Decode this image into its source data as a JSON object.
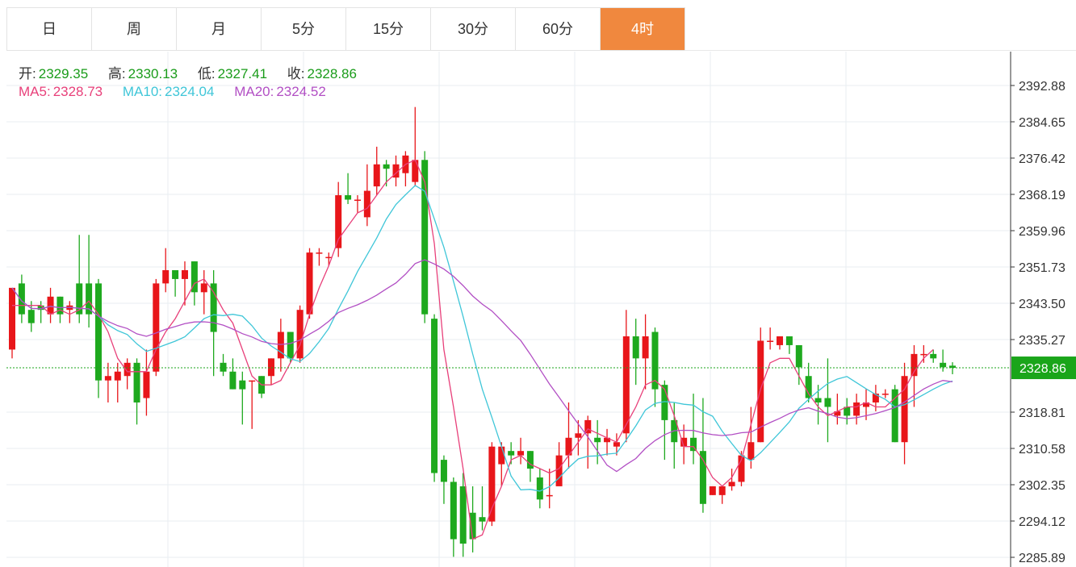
{
  "tabs": [
    {
      "label": "日",
      "active": false
    },
    {
      "label": "周",
      "active": false
    },
    {
      "label": "月",
      "active": false
    },
    {
      "label": "5分",
      "active": false
    },
    {
      "label": "15分",
      "active": false
    },
    {
      "label": "30分",
      "active": false
    },
    {
      "label": "60分",
      "active": false
    },
    {
      "label": "4时",
      "active": true
    }
  ],
  "ohlc": {
    "open_label": "开:",
    "open": "2329.35",
    "high_label": "高:",
    "high": "2330.13",
    "low_label": "低:",
    "low": "2327.41",
    "close_label": "收:",
    "close": "2328.86"
  },
  "ma": {
    "ma5_label": "MA5:",
    "ma5": "2328.73",
    "ma10_label": "MA10:",
    "ma10": "2324.04",
    "ma20_label": "MA20:",
    "ma20": "2324.52"
  },
  "colors": {
    "up": "#e8161a",
    "down": "#1ea91e",
    "ma5": "#e8407a",
    "ma10": "#3fc6d8",
    "ma20": "#b24fc4",
    "tab_active": "#f0883e",
    "current_price_box": "#1aa51a"
  },
  "chart_data": {
    "type": "candlestick",
    "y_ticks": [
      "2392.88",
      "2384.65",
      "2376.42",
      "2368.19",
      "2359.96",
      "2351.73",
      "2343.50",
      "2335.27",
      "2318.81",
      "2310.58",
      "2302.35",
      "2294.12",
      "2285.89"
    ],
    "ylim": [
      2285.89,
      2392.88
    ],
    "current_price": "2328.86",
    "candles": [
      [
        2333,
        2347,
        2344,
        2331
      ],
      [
        2348,
        2341,
        2350,
        2339
      ],
      [
        2342,
        2339,
        2344,
        2337
      ],
      [
        2343,
        2342,
        2344,
        2339
      ],
      [
        2341,
        2345,
        2347,
        2339
      ],
      [
        2345,
        2341,
        2345,
        2339
      ],
      [
        2342,
        2343,
        2344,
        2339
      ],
      [
        2348,
        2341,
        2359,
        2339
      ],
      [
        2348,
        2341,
        2359,
        2338
      ],
      [
        2348,
        2326,
        2349,
        2322
      ],
      [
        2326,
        2327,
        2330,
        2321
      ],
      [
        2326,
        2328,
        2330,
        2321
      ],
      [
        2327,
        2330,
        2331,
        2324
      ],
      [
        2330,
        2321,
        2331,
        2316
      ],
      [
        2322,
        2328,
        2333,
        2318
      ],
      [
        2328,
        2348,
        2349,
        2327
      ],
      [
        2348,
        2351,
        2356,
        2346
      ],
      [
        2351,
        2349,
        2351,
        2345
      ],
      [
        2349,
        2351,
        2353,
        2343
      ],
      [
        2353,
        2346,
        2353,
        2343
      ],
      [
        2346,
        2348,
        2351,
        2341
      ],
      [
        2348,
        2337,
        2351,
        2327
      ],
      [
        2330,
        2328,
        2332,
        2327
      ],
      [
        2328,
        2324,
        2331,
        2324
      ],
      [
        2326,
        2324,
        2328,
        2316
      ],
      [
        2326,
        2326,
        2326,
        2315
      ],
      [
        2327,
        2323,
        2327,
        2322
      ],
      [
        2327,
        2331,
        2331,
        2325
      ],
      [
        2331,
        2337,
        2340,
        2328
      ],
      [
        2337,
        2331,
        2337,
        2330
      ],
      [
        2331,
        2342,
        2343,
        2330
      ],
      [
        2341,
        2355,
        2356,
        2340
      ],
      [
        2355,
        2355,
        2356,
        2352
      ],
      [
        2354,
        2354,
        2355,
        2352
      ],
      [
        2356,
        2368,
        2371,
        2354
      ],
      [
        2368,
        2367,
        2373,
        2366
      ],
      [
        2367,
        2367,
        2368,
        2364
      ],
      [
        2363,
        2369,
        2375,
        2361
      ],
      [
        2370,
        2375,
        2379,
        2368
      ],
      [
        2375,
        2374,
        2376,
        2370
      ],
      [
        2372,
        2375,
        2377,
        2370
      ],
      [
        2373,
        2377,
        2378,
        2370
      ],
      [
        2371,
        2376,
        2388,
        2370
      ],
      [
        2376,
        2341,
        2378,
        2339
      ],
      [
        2340,
        2305,
        2341,
        2303
      ],
      [
        2308,
        2303,
        2309,
        2298
      ],
      [
        2303,
        2290,
        2304,
        2286
      ],
      [
        2302,
        2289,
        2305,
        2286
      ],
      [
        2296,
        2290,
        2302,
        2287
      ],
      [
        2295,
        2294,
        2302,
        2292
      ],
      [
        2294,
        2311,
        2312,
        2293
      ],
      [
        2307,
        2311,
        2312,
        2302
      ],
      [
        2310,
        2309,
        2312,
        2307
      ],
      [
        2309,
        2310,
        2313,
        2307
      ],
      [
        2310,
        2306,
        2310,
        2303
      ],
      [
        2304,
        2299,
        2306,
        2297
      ],
      [
        2300,
        2300,
        2306,
        2297
      ],
      [
        2302,
        2309,
        2312,
        2303
      ],
      [
        2309,
        2313,
        2321,
        2306
      ],
      [
        2313,
        2314,
        2317,
        2309
      ],
      [
        2314,
        2317,
        2318,
        2306
      ],
      [
        2313,
        2312,
        2317,
        2307
      ],
      [
        2312,
        2313,
        2315,
        2309
      ],
      [
        2311,
        2312,
        2314,
        2309
      ],
      [
        2314,
        2336,
        2342,
        2312
      ],
      [
        2336,
        2331,
        2340,
        2325
      ],
      [
        2331,
        2336,
        2341,
        2324
      ],
      [
        2337,
        2324,
        2338,
        2320
      ],
      [
        2325,
        2317,
        2326,
        2308
      ],
      [
        2317,
        2312,
        2321,
        2306
      ],
      [
        2311,
        2313,
        2316,
        2307
      ],
      [
        2313,
        2310,
        2323,
        2307
      ],
      [
        2310,
        2298,
        2322,
        2296
      ],
      [
        2300,
        2302,
        2302,
        2300
      ],
      [
        2300,
        2302,
        2302,
        2298
      ],
      [
        2302,
        2303,
        2306,
        2301
      ],
      [
        2303,
        2309,
        2310,
        2302
      ],
      [
        2308,
        2312,
        2320,
        2306
      ],
      [
        2312,
        2335,
        2338,
        2312
      ],
      [
        2335,
        2335,
        2338,
        2333
      ],
      [
        2334,
        2336,
        2336,
        2333
      ],
      [
        2336,
        2334,
        2336,
        2332
      ],
      [
        2334,
        2329,
        2334,
        2325
      ],
      [
        2327,
        2322,
        2330,
        2321
      ],
      [
        2322,
        2321,
        2325,
        2316
      ],
      [
        2322,
        2320,
        2331,
        2312
      ],
      [
        2318,
        2319,
        2323,
        2316
      ],
      [
        2320,
        2318,
        2322,
        2316
      ],
      [
        2318,
        2321,
        2323,
        2316
      ],
      [
        2320,
        2321,
        2324,
        2317
      ],
      [
        2321,
        2323,
        2325,
        2319
      ],
      [
        2323,
        2323,
        2324,
        2322
      ],
      [
        2324,
        2312,
        2325,
        2312
      ],
      [
        2312,
        2327,
        2330,
        2307
      ],
      [
        2327,
        2332,
        2334,
        2320
      ],
      [
        2332,
        2332,
        2334,
        2330
      ],
      [
        2332,
        2331,
        2333,
        2330
      ],
      [
        2330,
        2329,
        2333,
        2328
      ],
      [
        2329.35,
        2328.86,
        2330.13,
        2327.41
      ]
    ],
    "ma5": [
      2343,
      2343,
      2343,
      2343,
      2341,
      2342,
      2341,
      2342,
      2344,
      2341,
      2337,
      2331,
      2328,
      2328,
      2328,
      2333,
      2337,
      2340,
      2344,
      2348,
      2349,
      2346,
      2342,
      2339,
      2333,
      2327,
      2325,
      2325,
      2326,
      2330,
      2334,
      2341,
      2347,
      2352,
      2358,
      2361,
      2364,
      2365,
      2368,
      2371,
      2373,
      2375,
      2376,
      2371,
      2357,
      2333,
      2320,
      2306,
      2290,
      2291,
      2297,
      2302,
      2308,
      2309,
      2307,
      2306,
      2305,
      2306,
      2309,
      2312,
      2315,
      2314,
      2313,
      2312,
      2316,
      2320,
      2325,
      2326,
      2324,
      2318,
      2311,
      2311,
      2308,
      2304,
      2302,
      2304,
      2308,
      2316,
      2324,
      2330,
      2331,
      2331,
      2327,
      2323,
      2320,
      2318,
      2319,
      2320,
      2320,
      2321,
      2320,
      2320,
      2322,
      2324,
      2328,
      2331,
      2333
    ]
  }
}
